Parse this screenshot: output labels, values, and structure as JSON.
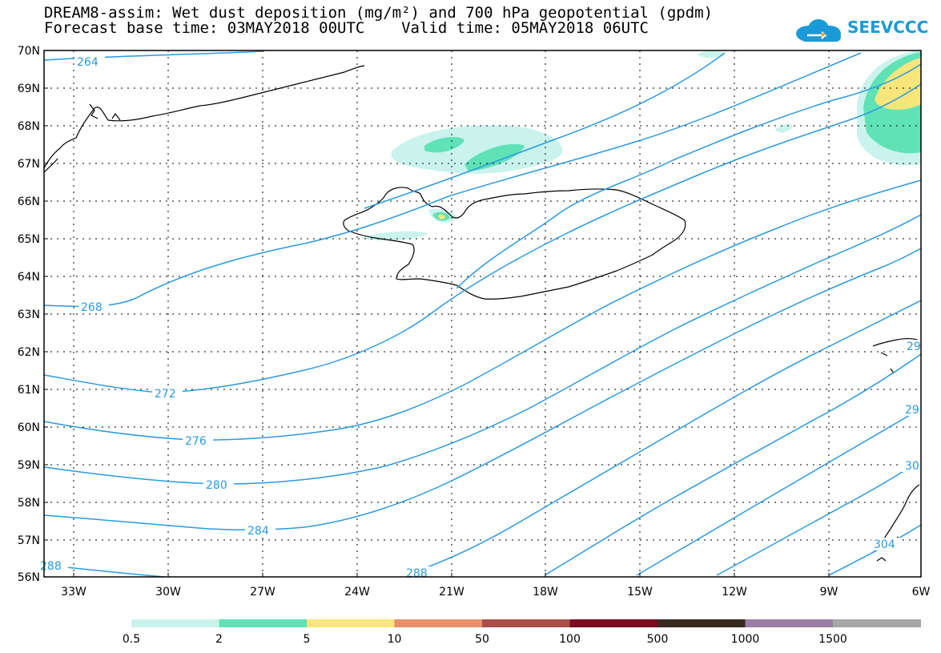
{
  "header": {
    "title_line1": "DREAM8-assim: Wet dust deposition (mg/m²) and 700 hPa geopotential (gpdm)",
    "title_line2": "Forecast base time: 03MAY2018 00UTC    Valid time: 05MAY2018 06UTC",
    "logo_text": "SEEVCCC"
  },
  "map": {
    "lat_labels": [
      "70N",
      "69N",
      "68N",
      "67N",
      "66N",
      "65N",
      "64N",
      "63N",
      "62N",
      "61N",
      "60N",
      "59N",
      "58N",
      "57N",
      "56N"
    ],
    "lon_labels": [
      "33W",
      "30W",
      "27W",
      "24W",
      "21W",
      "18W",
      "15W",
      "12W",
      "9W",
      "6W"
    ],
    "contour_labels": [
      "264",
      "268",
      "272",
      "276",
      "280",
      "284",
      "288",
      "288",
      "29",
      "29",
      "30",
      "304"
    ]
  },
  "colorbar": {
    "colors": [
      "#c9f3ec",
      "#5fe2b6",
      "#f8e67a",
      "#e8906d",
      "#a8504a",
      "#7a0c22",
      "#3b2a1e",
      "#9a7ea4",
      "#a7a7a7"
    ],
    "labels": [
      "0.5",
      "2",
      "5",
      "10",
      "50",
      "100",
      "500",
      "1000",
      "1500"
    ]
  },
  "colors": {
    "contour": "#2a9ae0"
  }
}
